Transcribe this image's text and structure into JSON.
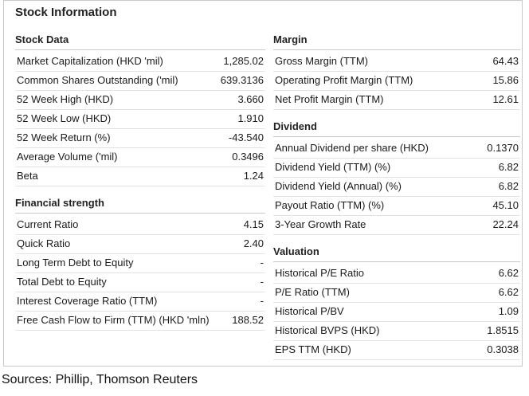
{
  "title": "Stock Information",
  "left": {
    "stock_data": {
      "header": "Stock Data",
      "rows": [
        {
          "label": "Market Capitalization (HKD 'mil)",
          "value": "1,285.02"
        },
        {
          "label": "Common Shares Outstanding ('mil)",
          "value": "639.3136"
        },
        {
          "label": "52 Week High (HKD)",
          "value": "3.660"
        },
        {
          "label": "52 Week Low (HKD)",
          "value": "1.910"
        },
        {
          "label": "52 Week Return (%)",
          "value": "-43.540"
        },
        {
          "label": "Average Volume ('mil)",
          "value": "0.3496"
        },
        {
          "label": "Beta",
          "value": "1.24"
        }
      ]
    },
    "financial_strength": {
      "header": "Financial strength",
      "rows": [
        {
          "label": "Current Ratio",
          "value": "4.15"
        },
        {
          "label": "Quick Ratio",
          "value": "2.40"
        },
        {
          "label": "Long Term Debt to Equity",
          "value": "-"
        },
        {
          "label": "Total Debt to Equity",
          "value": "-"
        },
        {
          "label": "Interest Coverage Ratio (TTM)",
          "value": "-"
        },
        {
          "label": "Free Cash Flow to Firm (TTM) (HKD 'mln)",
          "value": "188.52"
        }
      ]
    }
  },
  "right": {
    "margin": {
      "header": "Margin",
      "rows": [
        {
          "label": "Gross Margin (TTM)",
          "value": "64.43"
        },
        {
          "label": "Operating Profit Margin (TTM)",
          "value": "15.86"
        },
        {
          "label": "Net Profit Margin (TTM)",
          "value": "12.61"
        }
      ]
    },
    "dividend": {
      "header": "Dividend",
      "rows": [
        {
          "label": "Annual Dividend per share (HKD)",
          "value": "0.1370"
        },
        {
          "label": "Dividend Yield (TTM) (%)",
          "value": "6.82"
        },
        {
          "label": "Dividend Yield (Annual) (%)",
          "value": "6.82"
        },
        {
          "label": "Payout Ratio (TTM) (%)",
          "value": "45.10"
        },
        {
          "label": "3-Year Growth Rate",
          "value": "22.24"
        }
      ]
    },
    "valuation": {
      "header": "Valuation",
      "rows": [
        {
          "label": "Historical P/E Ratio",
          "value": "6.62"
        },
        {
          "label": "P/E Ratio (TTM)",
          "value": "6.62"
        },
        {
          "label": "Historical P/BV",
          "value": "1.09"
        },
        {
          "label": "Historical BVPS (HKD)",
          "value": "1.8515"
        },
        {
          "label": "EPS TTM (HKD)",
          "value": "0.3038"
        }
      ]
    }
  },
  "sources": "Sources: Phillip, Thomson Reuters"
}
